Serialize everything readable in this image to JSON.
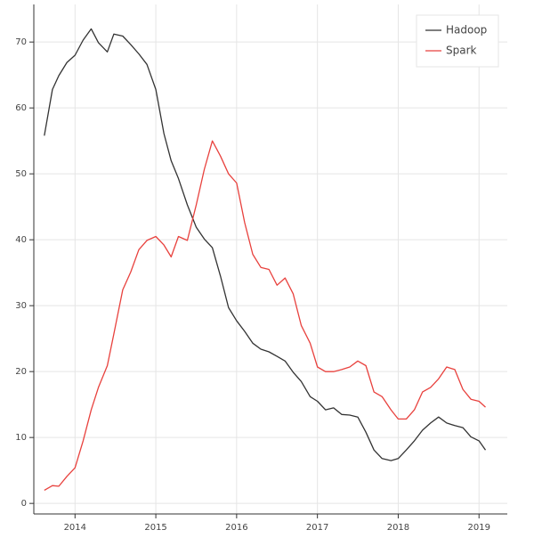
{
  "chart_data": {
    "type": "line",
    "x": [
      2013.62,
      2013.72,
      2013.8,
      2013.9,
      2014.0,
      2014.1,
      2014.2,
      2014.29,
      2014.4,
      2014.48,
      2014.59,
      2014.69,
      2014.79,
      2014.89,
      2015.0,
      2015.1,
      2015.19,
      2015.28,
      2015.39,
      2015.5,
      2015.6,
      2015.7,
      2015.8,
      2015.9,
      2016.0,
      2016.1,
      2016.2,
      2016.3,
      2016.4,
      2016.5,
      2016.6,
      2016.7,
      2016.8,
      2016.91,
      2017.0,
      2017.1,
      2017.2,
      2017.3,
      2017.4,
      2017.5,
      2017.6,
      2017.7,
      2017.8,
      2017.91,
      2018.0,
      2018.1,
      2018.2,
      2018.3,
      2018.4,
      2018.5,
      2018.6,
      2018.7,
      2018.8,
      2018.9,
      2019.0,
      2019.08
    ],
    "series": [
      {
        "name": "Hadoop",
        "color": "#333333",
        "values": [
          55.8,
          62.8,
          64.9,
          66.9,
          68.0,
          70.3,
          72.0,
          69.9,
          68.5,
          71.2,
          70.9,
          69.6,
          68.2,
          66.6,
          62.8,
          56.1,
          52,
          49.3,
          45.3,
          41.9,
          40.1,
          38.8,
          34.5,
          29.7,
          27.7,
          26.1,
          24.3,
          23.4,
          23,
          22.3,
          21.6,
          19.9,
          18.5,
          16.2,
          15.5,
          14.2,
          14.5,
          13.5,
          13.4,
          13.1,
          10.8,
          8.1,
          6.8,
          6.5,
          6.8,
          8.1,
          9.5,
          11.1,
          12.2,
          13.1,
          12.2,
          11.8,
          11.5,
          10.1,
          9.5,
          8.1
        ]
      },
      {
        "name": "Spark",
        "color": "#e8413d",
        "values": [
          2.0,
          2.7,
          2.6,
          4.1,
          5.4,
          9.5,
          14.2,
          17.6,
          20.9,
          25.7,
          32.4,
          35.1,
          38.5,
          39.9,
          40.5,
          39.2,
          37.4,
          40.5,
          39.9,
          45.3,
          50.7,
          55,
          52.7,
          50,
          48.6,
          42.6,
          37.8,
          35.8,
          35.5,
          33.1,
          34.2,
          31.8,
          27,
          24.3,
          20.7,
          20,
          20,
          20.3,
          20.7,
          21.6,
          20.9,
          16.9,
          16.2,
          14.2,
          12.8,
          12.8,
          14.2,
          16.9,
          17.6,
          18.9,
          20.7,
          20.3,
          17.3,
          15.8,
          15.5,
          14.6
        ]
      }
    ],
    "xlim": [
      2013.49,
      2019.35
    ],
    "xticks": [
      2014,
      2015,
      2016,
      2017,
      2018,
      2019
    ],
    "ylim": [
      -1.6,
      75.7
    ],
    "yticks": [
      0,
      10,
      20,
      30,
      40,
      50,
      60,
      70
    ],
    "grid": true,
    "legend": "top-right"
  }
}
